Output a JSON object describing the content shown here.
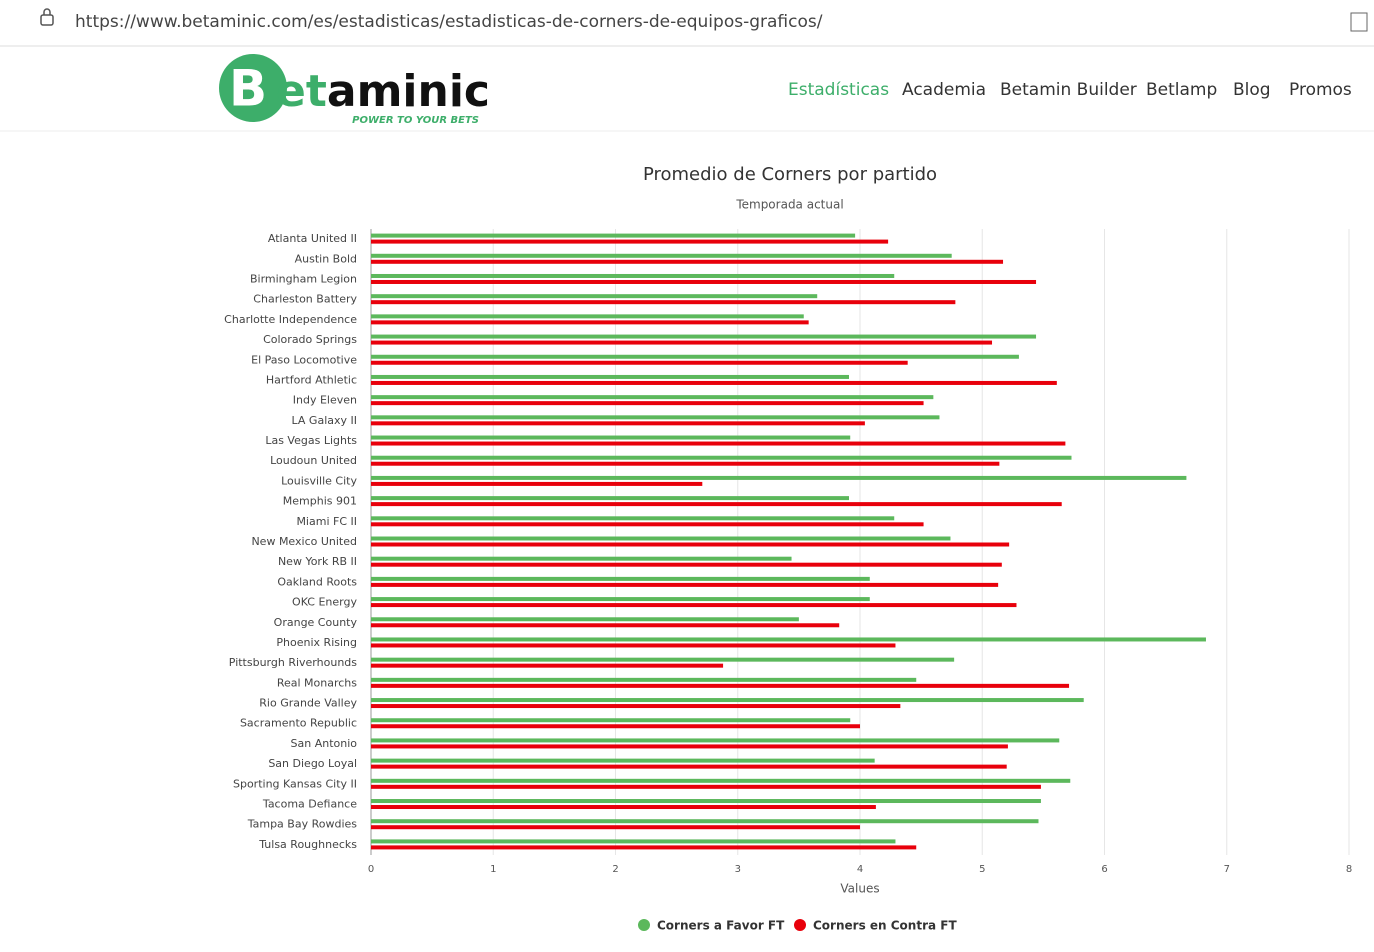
{
  "browser": {
    "url": "https://www.betaminic.com/es/estadisticas/estadisticas-de-corners-de-equipos-graficos/"
  },
  "header": {
    "logo_letter": "B",
    "logo_green": "et",
    "logo_black": "aminic",
    "tagline": "POWER TO YOUR BETS",
    "nav": [
      "Estadísticas",
      "Academia",
      "Betamin Builder",
      "Betlamp",
      "Blog",
      "Promos"
    ]
  },
  "chart_data": {
    "type": "bar",
    "orientation": "horizontal",
    "title": "Promedio de Corners por partido",
    "subtitle": "Temporada actual",
    "x_label": "Values",
    "categories": [
      "Atlanta United II",
      "Austin Bold",
      "Birmingham Legion",
      "Charleston Battery",
      "Charlotte Independence",
      "Colorado Springs",
      "El Paso Locomotive",
      "Hartford Athletic",
      "Indy Eleven",
      "LA Galaxy II",
      "Las Vegas Lights",
      "Loudoun United",
      "Louisville City",
      "Memphis 901",
      "Miami FC II",
      "New Mexico United",
      "New York RB II",
      "Oakland Roots",
      "OKC Energy",
      "Orange County",
      "Phoenix Rising",
      "Pittsburgh Riverhounds",
      "Real Monarchs",
      "Rio Grande Valley",
      "Sacramento Republic",
      "San Antonio",
      "San Diego Loyal",
      "Sporting Kansas City II",
      "Tacoma Defiance",
      "Tampa Bay Rowdies",
      "Tulsa Roughnecks"
    ],
    "series": [
      {
        "name": "Corners a Favor FT",
        "color": "#5cb85c",
        "values": [
          3.96,
          4.75,
          4.28,
          3.65,
          3.54,
          5.44,
          5.3,
          3.91,
          4.6,
          4.65,
          3.92,
          5.73,
          6.67,
          3.91,
          4.28,
          4.74,
          3.44,
          4.08,
          4.08,
          3.5,
          6.83,
          4.77,
          4.46,
          5.83,
          3.92,
          5.63,
          4.12,
          5.72,
          5.48,
          5.46,
          4.29
        ]
      },
      {
        "name": "Corners en Contra FT",
        "color": "#e8000b",
        "values": [
          4.23,
          5.17,
          5.44,
          4.78,
          3.58,
          5.08,
          4.39,
          5.61,
          4.52,
          4.04,
          5.68,
          5.14,
          2.71,
          5.65,
          4.52,
          5.22,
          5.16,
          5.13,
          5.28,
          3.83,
          4.29,
          2.88,
          5.71,
          4.33,
          4.0,
          5.21,
          5.2,
          5.48,
          4.13,
          4.0,
          4.46
        ]
      }
    ],
    "xlim": [
      0,
      8
    ],
    "xticks": [
      0,
      1,
      2,
      3,
      4,
      5,
      6,
      7,
      8
    ],
    "grid": true
  }
}
